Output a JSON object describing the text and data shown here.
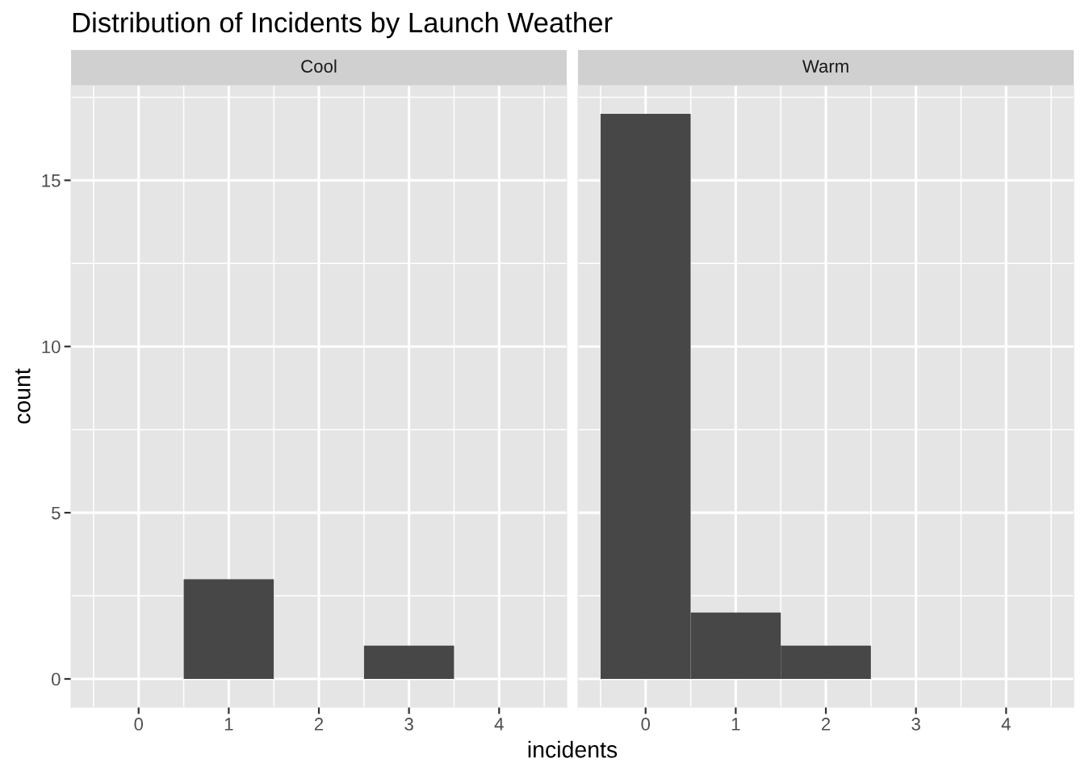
{
  "chart_data": [
    {
      "type": "histogram",
      "title": "Distribution of Incidents by Launch Weather",
      "subtitle": "Cool",
      "xlabel": "incidents",
      "ylabel": "count",
      "bins": [
        -0.5,
        0.5,
        1.5,
        2.5,
        3.5,
        4.5
      ],
      "values": [
        0,
        3,
        0,
        1,
        0
      ],
      "color": "#474747",
      "xlim": [
        -0.75,
        4.75
      ],
      "xticks": [
        {
          "value": -0.5,
          "label": null
        },
        0,
        {
          "value": 0.5,
          "label": null
        },
        1,
        {
          "value": 1.5,
          "label": null
        },
        2,
        {
          "value": 2.5,
          "label": null
        },
        3,
        {
          "value": 3.5,
          "label": null
        },
        4,
        {
          "value": 4.5,
          "label": null
        }
      ],
      "ylim": [
        -0.85,
        17.85
      ],
      "yticks": [
        0,
        {
          "value": 2.5,
          "label": null
        },
        5,
        {
          "value": 7.5,
          "label": null
        },
        10,
        {
          "value": 12.5,
          "label": null
        },
        15,
        {
          "value": 17.5,
          "label": null
        }
      ],
      "grid": true
    },
    {
      "type": "histogram",
      "subtitle": "Warm",
      "bins": [
        -0.5,
        0.5,
        1.5,
        2.5,
        3.5,
        4.5
      ],
      "values": [
        17,
        2,
        1,
        0,
        0
      ],
      "color": "#474747",
      "xlim": [
        -0.75,
        4.75
      ],
      "xticks": [
        {
          "value": -0.5,
          "label": null
        },
        0,
        {
          "value": 0.5,
          "label": null
        },
        1,
        {
          "value": 1.5,
          "label": null
        },
        2,
        {
          "value": 2.5,
          "label": null
        },
        3,
        {
          "value": 3.5,
          "label": null
        },
        4,
        {
          "value": 4.5,
          "label": null
        }
      ],
      "ylim": [
        -0.85,
        17.85
      ],
      "yticks": [
        0,
        {
          "value": 2.5,
          "label": null
        },
        5,
        {
          "value": 7.5,
          "label": null
        },
        10,
        {
          "value": 12.5,
          "label": null
        },
        15,
        {
          "value": 17.5,
          "label": null
        }
      ],
      "grid": true,
      "tick_labels": "x"
    }
  ]
}
